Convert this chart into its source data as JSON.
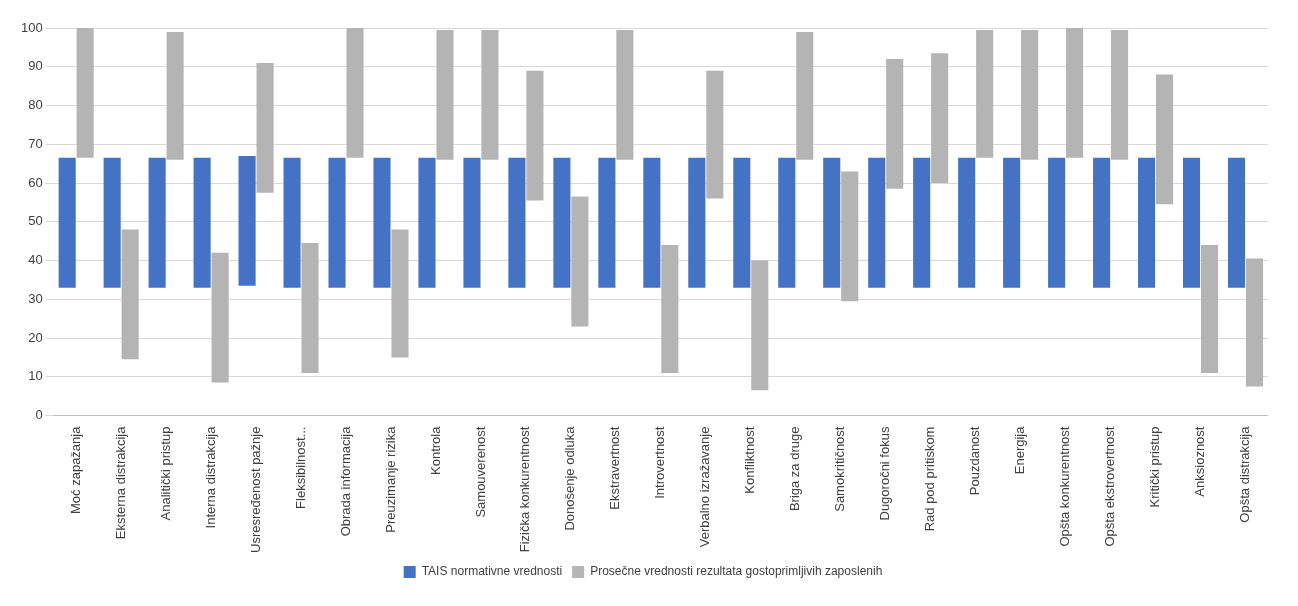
{
  "chart_data": {
    "type": "bar",
    "categories": [
      "Moć zapažanja",
      "Eksterna distrakcija",
      "Analitički pristup",
      "Interna distrakcija",
      "Usresređenost pažnje",
      "Fleksibilnost...",
      "Obrada informacija",
      "Preuzimanje rizika",
      "Kontrola",
      "Samouverenost",
      "Fizička konkurentnost",
      "Donošenje odluka",
      "Ekstravertnost",
      "Introvertnost",
      "Verbalno izražavanje",
      "Konfliktnost",
      "Briga za druge",
      "Samokritičnost",
      "Dugoročni fokus",
      "Rad pod pritiskom",
      "Pouzdanost",
      "Energija",
      "Opšta konkurentnost",
      "Opšta ekstrovertnost",
      "Kritički pristup",
      "Anksioznost",
      "Opšta distrakcija"
    ],
    "series": [
      {
        "name": "TAIS normativne vrednosti",
        "color": "#4472c4",
        "base": [
          33,
          33,
          33,
          33,
          33.5,
          33,
          33,
          33,
          33,
          33,
          33,
          33,
          33,
          33,
          33,
          33,
          33,
          33,
          33,
          33,
          33,
          33,
          33,
          33,
          33,
          33,
          33
        ],
        "values": [
          33.5,
          33.5,
          33.5,
          33.5,
          33.5,
          33.5,
          33.5,
          33.5,
          33.5,
          33.5,
          33.5,
          33.5,
          33.5,
          33.5,
          33.5,
          33.5,
          33.5,
          33.5,
          33.5,
          33.5,
          33.5,
          33.5,
          33.5,
          33.5,
          33.5,
          33.5,
          33.5
        ]
      },
      {
        "name": "Prosečne vrednosti rezultata gostoprimljivih zaposlenih",
        "color": "#b4b4b4",
        "base": [
          66.5,
          14.5,
          66,
          8.5,
          57.5,
          11,
          66.5,
          15,
          66,
          66,
          55.5,
          23,
          66,
          11,
          56,
          6.5,
          66,
          29.5,
          58.5,
          60,
          66.5,
          66,
          66.5,
          66,
          54.5,
          11,
          7.5
        ],
        "values": [
          33.5,
          33.5,
          33,
          33.5,
          33.5,
          33.5,
          33.5,
          33,
          33.5,
          33.5,
          33.5,
          33.5,
          33.5,
          33,
          33,
          33.5,
          33,
          33.5,
          33.5,
          33.5,
          33,
          33.5,
          33.5,
          33.5,
          33.5,
          33,
          33
        ]
      }
    ],
    "ylim": [
      0,
      100
    ],
    "yticks": [
      0,
      10,
      20,
      30,
      40,
      50,
      60,
      70,
      80,
      90,
      100
    ],
    "grid": "y",
    "legend": "bottom"
  }
}
